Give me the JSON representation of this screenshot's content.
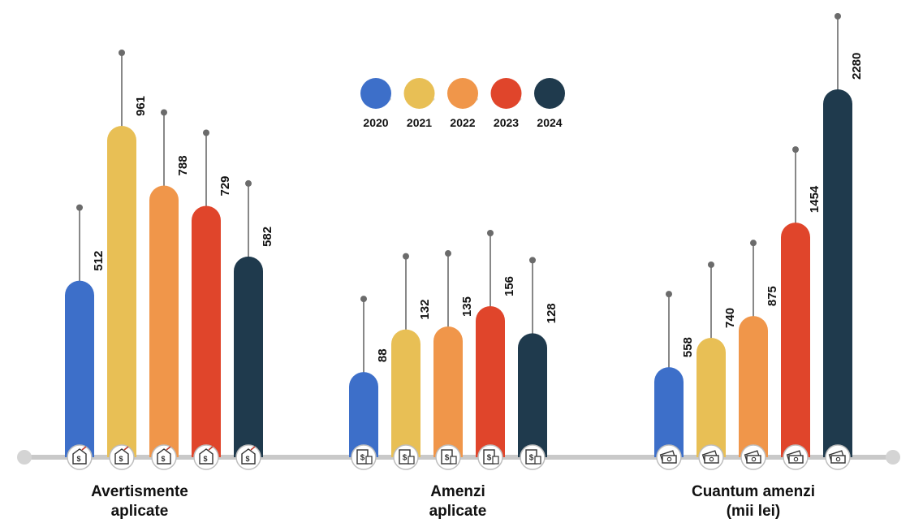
{
  "chart_data": {
    "type": "bar",
    "legend_position": "top-center",
    "series_names": [
      "2020",
      "2021",
      "2022",
      "2023",
      "2024"
    ],
    "series_colors": [
      "#3d6fc9",
      "#e8bf55",
      "#f0964a",
      "#e0452b",
      "#1f3a4d"
    ],
    "groups": [
      {
        "label_lines": [
          "Avertismente",
          "aplicate"
        ],
        "values": [
          512,
          961,
          788,
          729,
          582
        ],
        "value_labels": [
          "512",
          "961",
          "788",
          "729",
          "582"
        ],
        "icon": "warning-document-icon"
      },
      {
        "label_lines": [
          "Amenzi",
          "aplicate"
        ],
        "values": [
          88,
          132,
          135,
          156,
          128
        ],
        "value_labels": [
          "88",
          "132",
          "135",
          "156",
          "128"
        ],
        "icon": "fine-receipt-icon"
      },
      {
        "label_lines": [
          "Cuantum amenzi",
          "(mii lei)"
        ],
        "values": [
          558,
          740,
          875,
          1454,
          2280
        ],
        "value_labels": [
          "558",
          "740",
          "875",
          "1454",
          "2280"
        ],
        "icon": "banknotes-icon"
      }
    ],
    "grid": false
  }
}
